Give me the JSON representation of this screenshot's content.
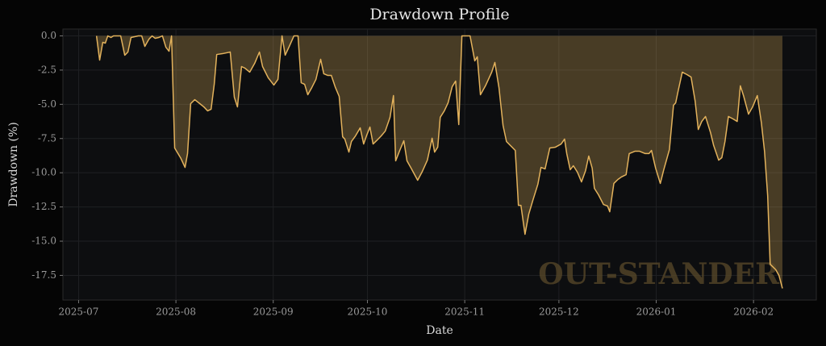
{
  "chart_data": {
    "type": "area",
    "title": "Drawdown Profile",
    "xlabel": "Date",
    "ylabel": "Drawdown (%)",
    "annotation": "OUT-STANDER",
    "color": "#e3b25c",
    "grid": true,
    "xlim": [
      -5,
      235
    ],
    "ylim": [
      -19.3,
      0.5
    ],
    "xticks": [
      {
        "value": 0,
        "label": "2025-07"
      },
      {
        "value": 31,
        "label": "2025-08"
      },
      {
        "value": 62,
        "label": "2025-09"
      },
      {
        "value": 92,
        "label": "2025-10"
      },
      {
        "value": 123,
        "label": "2025-11"
      },
      {
        "value": 153,
        "label": "2025-12"
      },
      {
        "value": 184,
        "label": "2026-01"
      },
      {
        "value": 215,
        "label": "2026-02"
      }
    ],
    "yticks": [
      {
        "value": 0,
        "label": "0.0"
      },
      -2.5,
      {
        "value": -5,
        "label": "-5.0"
      },
      -7.5,
      {
        "value": -10,
        "label": "-10.0"
      },
      -12.5,
      {
        "value": -15,
        "label": "-15.0"
      },
      -17.5
    ],
    "x": [
      5.7,
      6.7,
      7.7,
      8.5,
      9.3,
      10.3,
      11.1,
      13.4,
      14.7,
      15.7,
      16.7,
      19.0,
      20.1,
      21.1,
      22.4,
      23.4,
      24.4,
      25.5,
      26.7,
      27.8,
      28.8,
      29.6,
      30.6,
      32.6,
      33.9,
      34.7,
      35.7,
      37.0,
      38.6,
      39.9,
      41.1,
      42.2,
      43.2,
      44.0,
      45.8,
      48.3,
      49.6,
      50.6,
      51.9,
      53.0,
      54.5,
      56.1,
      57.6,
      58.6,
      60.4,
      62.2,
      63.5,
      64.8,
      65.8,
      67.1,
      68.6,
      69.9,
      70.9,
      72.0,
      73.0,
      74.3,
      75.6,
      77.1,
      78.1,
      79.4,
      80.5,
      81.8,
      83.0,
      84.1,
      84.8,
      86.1,
      86.9,
      88.2,
      89.7,
      90.8,
      91.8,
      92.8,
      93.8,
      94.9,
      96.4,
      97.7,
      99.2,
      100.3,
      101.0,
      102.3,
      103.6,
      104.6,
      105.9,
      108.0,
      109.5,
      111.1,
      112.6,
      113.4,
      114.4,
      115.2,
      116.5,
      117.7,
      119.0,
      120.1,
      121.1,
      122.1,
      124.7,
      126.2,
      127.0,
      128.0,
      129.6,
      131.6,
      132.6,
      133.9,
      135.2,
      136.3,
      139.1,
      140.1,
      140.9,
      142.2,
      143.4,
      144.7,
      146.3,
      147.3,
      148.6,
      150.1,
      151.9,
      153.7,
      154.8,
      155.5,
      156.6,
      157.6,
      158.9,
      160.2,
      161.5,
      162.5,
      163.6,
      164.3,
      165.6,
      167.2,
      168.5,
      169.2,
      170.5,
      171.8,
      172.9,
      174.4,
      175.4,
      177.2,
      178.7,
      180.5,
      181.7,
      182.5,
      183.8,
      185.3,
      186.4,
      188.2,
      189.5,
      190.2,
      191.0,
      192.3,
      193.8,
      195.1,
      196.4,
      197.4,
      198.5,
      199.7,
      201.3,
      202.3,
      203.9,
      204.9,
      205.9,
      207.0,
      208.5,
      209.8,
      210.8,
      211.8,
      213.4,
      214.7,
      216.2,
      217.5,
      218.5,
      219.5,
      220.3,
      222.1,
      223.1,
      224.2
    ],
    "values": [
      0,
      -1.77,
      -0.47,
      -0.53,
      0,
      -0.12,
      0,
      0,
      -1.41,
      -1.18,
      -0.12,
      0,
      0,
      -0.77,
      -0.24,
      0,
      -0.18,
      -0.12,
      0,
      -0.83,
      -1.12,
      0,
      -8.19,
      -8.96,
      -9.61,
      -8.6,
      -4.95,
      -4.66,
      -4.95,
      -5.19,
      -5.48,
      -5.36,
      -3.54,
      -1.36,
      -1.3,
      -1.18,
      -4.48,
      -5.19,
      -2.24,
      -2.36,
      -2.65,
      -2.0,
      -1.18,
      -2.24,
      -3.06,
      -3.59,
      -3.18,
      0,
      -1.41,
      -0.77,
      0,
      0,
      -3.42,
      -3.54,
      -4.3,
      -3.77,
      -3.18,
      -1.71,
      -2.77,
      -2.89,
      -2.89,
      -3.77,
      -4.42,
      -7.37,
      -7.54,
      -8.49,
      -7.72,
      -7.31,
      -6.72,
      -7.9,
      -7.25,
      -6.66,
      -7.9,
      -7.66,
      -7.31,
      -6.95,
      -5.95,
      -4.36,
      -9.13,
      -8.37,
      -7.66,
      -9.13,
      -9.66,
      -10.55,
      -9.9,
      -9.08,
      -7.48,
      -8.49,
      -8.13,
      -5.95,
      -5.48,
      -4.89,
      -3.71,
      -3.3,
      -6.48,
      0,
      0,
      -1.83,
      -1.53,
      -4.3,
      -3.65,
      -2.65,
      -1.94,
      -3.77,
      -6.54,
      -7.72,
      -8.37,
      -12.38,
      -12.38,
      -14.5,
      -13.02,
      -12.02,
      -10.84,
      -9.61,
      -9.72,
      -8.19,
      -8.13,
      -7.9,
      -7.54,
      -8.6,
      -9.78,
      -9.49,
      -9.96,
      -10.67,
      -9.84,
      -8.78,
      -9.66,
      -11.14,
      -11.61,
      -12.32,
      -12.43,
      -12.85,
      -10.78,
      -10.49,
      -10.31,
      -10.14,
      -8.6,
      -8.43,
      -8.43,
      -8.6,
      -8.6,
      -8.37,
      -9.66,
      -10.78,
      -9.78,
      -8.31,
      -5.07,
      -4.89,
      -4.01,
      -2.65,
      -2.83,
      -3.01,
      -4.77,
      -6.84,
      -6.25,
      -5.89,
      -7.07,
      -8.01,
      -9.08,
      -8.9,
      -7.72,
      -5.89,
      -6.07,
      -6.25,
      -3.65,
      -4.36,
      -5.72,
      -5.19,
      -4.36,
      -6.36,
      -8.43,
      -11.67,
      -16.68,
      -17.09,
      -17.5,
      -18.45
    ]
  }
}
